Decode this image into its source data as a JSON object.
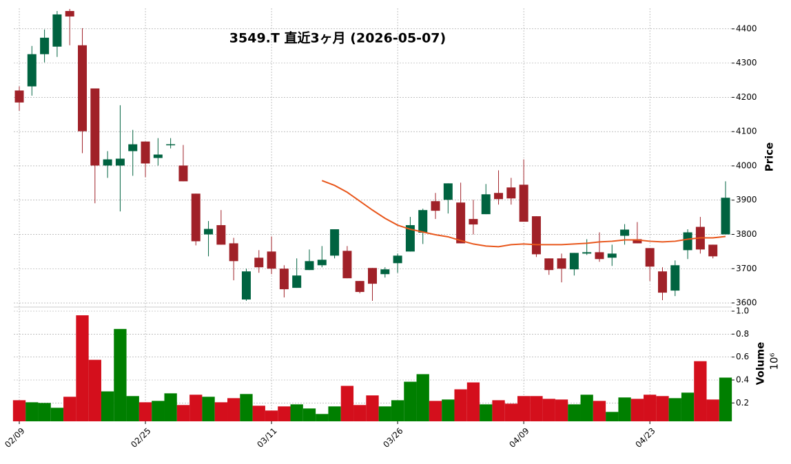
{
  "chart_data": {
    "type": "candlestick",
    "title": "3549.T  直近3ヶ月  (2026-05-07)",
    "y_label": "Price",
    "volume_label": "Volume",
    "volume_scale_label": "10⁶",
    "categories": [
      "02/09",
      null,
      null,
      null,
      null,
      null,
      null,
      null,
      null,
      null,
      "02/25",
      null,
      null,
      null,
      null,
      null,
      null,
      null,
      null,
      null,
      "03/11",
      null,
      null,
      null,
      null,
      null,
      null,
      null,
      null,
      null,
      "03/26",
      null,
      null,
      null,
      null,
      null,
      null,
      null,
      null,
      null,
      "04/09",
      null,
      null,
      null,
      null,
      null,
      null,
      null,
      null,
      null,
      "04/23",
      null,
      null,
      null,
      null,
      null,
      null
    ],
    "open": [
      4220,
      4232,
      4326,
      4348,
      4452,
      4352,
      4226,
      4001,
      4001,
      4043,
      4071,
      4023,
      4061,
      4001,
      3919,
      3800,
      3827,
      3774,
      3610,
      3732,
      3750,
      3700,
      3644,
      3696,
      3710,
      3738,
      3752,
      3664,
      3702,
      3684,
      3716,
      3750,
      3805,
      3897,
      3901,
      3893,
      3845,
      3859,
      3921,
      3937,
      3945,
      3853,
      3730,
      3730,
      3698,
      3744,
      3748,
      3732,
      3796,
      3786,
      3760,
      3692,
      3636,
      3754,
      3822,
      3770,
      3800
    ],
    "high": [
      4232,
      4350,
      4398,
      4452,
      4458,
      4402,
      4226,
      4043,
      4177,
      4105,
      4071,
      4081,
      4081,
      4061,
      3919,
      3839,
      3871,
      3790,
      3700,
      3754,
      3794,
      3710,
      3730,
      3756,
      3766,
      3815,
      3766,
      3664,
      3702,
      3704,
      3744,
      3851,
      3875,
      3921,
      3949,
      3951,
      3901,
      3947,
      3987,
      3965,
      4019,
      3853,
      3730,
      3744,
      3746,
      3786,
      3806,
      3770,
      3830,
      3836,
      3760,
      3704,
      3724,
      3815,
      3851,
      3770,
      3955
    ],
    "low": [
      4161,
      4205,
      4302,
      4318,
      4352,
      4037,
      3891,
      3965,
      3867,
      3971,
      3967,
      4001,
      4051,
      3955,
      3768,
      3736,
      3770,
      3666,
      3606,
      3688,
      3684,
      3616,
      3644,
      3696,
      3704,
      3730,
      3672,
      3628,
      3606,
      3674,
      3688,
      3750,
      3772,
      3845,
      3861,
      3774,
      3800,
      3859,
      3887,
      3887,
      3837,
      3734,
      3682,
      3660,
      3680,
      3740,
      3720,
      3708,
      3770,
      3774,
      3664,
      3608,
      3620,
      3728,
      3744,
      3730,
      3800
    ],
    "close": [
      4185,
      4326,
      4374,
      4442,
      4436,
      4101,
      4001,
      4019,
      4021,
      4063,
      4007,
      4033,
      4063,
      3955,
      3780,
      3816,
      3770,
      3722,
      3692,
      3704,
      3700,
      3640,
      3680,
      3722,
      3726,
      3815,
      3672,
      3632,
      3656,
      3698,
      3738,
      3827,
      3871,
      3869,
      3949,
      3774,
      3829,
      3917,
      3903,
      3905,
      3837,
      3742,
      3696,
      3700,
      3746,
      3748,
      3728,
      3744,
      3814,
      3774,
      3706,
      3630,
      3710,
      3806,
      3756,
      3736,
      3907
    ],
    "up_color": "#006340",
    "down_color": "#a02128",
    "ma_values": [
      null,
      null,
      null,
      null,
      null,
      null,
      null,
      null,
      null,
      null,
      null,
      null,
      null,
      null,
      null,
      null,
      null,
      null,
      null,
      null,
      null,
      null,
      null,
      null,
      3957,
      3943,
      3923,
      3897,
      3871,
      3847,
      3827,
      3815,
      3807,
      3799,
      3793,
      3782,
      3772,
      3766,
      3764,
      3770,
      3772,
      3770,
      3770,
      3770,
      3772,
      3774,
      3778,
      3780,
      3784,
      3784,
      3780,
      3778,
      3780,
      3786,
      3790,
      3790,
      3794
    ],
    "ma_color": "#e8561b",
    "volume": [
      0.224,
      0.206,
      0.2,
      0.158,
      0.254,
      0.964,
      0.576,
      0.301,
      0.845,
      0.26,
      0.206,
      0.218,
      0.284,
      0.182,
      0.272,
      0.254,
      0.206,
      0.242,
      0.278,
      0.176,
      0.134,
      0.17,
      0.188,
      0.152,
      0.104,
      0.17,
      0.349,
      0.182,
      0.266,
      0.17,
      0.224,
      0.385,
      0.451,
      0.218,
      0.23,
      0.319,
      0.379,
      0.188,
      0.224,
      0.194,
      0.26,
      0.26,
      0.236,
      0.23,
      0.188,
      0.272,
      0.218,
      0.122,
      0.248,
      0.236,
      0.272,
      0.26,
      0.242,
      0.29,
      0.564,
      0.23,
      0.421
    ],
    "volume_up_color": "#007f00",
    "volume_down_color": "#d40f1c",
    "ylim": [
      3590,
      4460
    ],
    "yticks": [
      3600,
      3700,
      3800,
      3900,
      4000,
      4100,
      4200,
      4300,
      4400
    ],
    "volume_ylim": [
      0.04,
      1.03
    ],
    "volume_yticks": [
      0.2,
      0.4,
      0.6,
      0.8,
      {
        "value": 1,
        "label": "1.0"
      }
    ],
    "grid": true
  }
}
